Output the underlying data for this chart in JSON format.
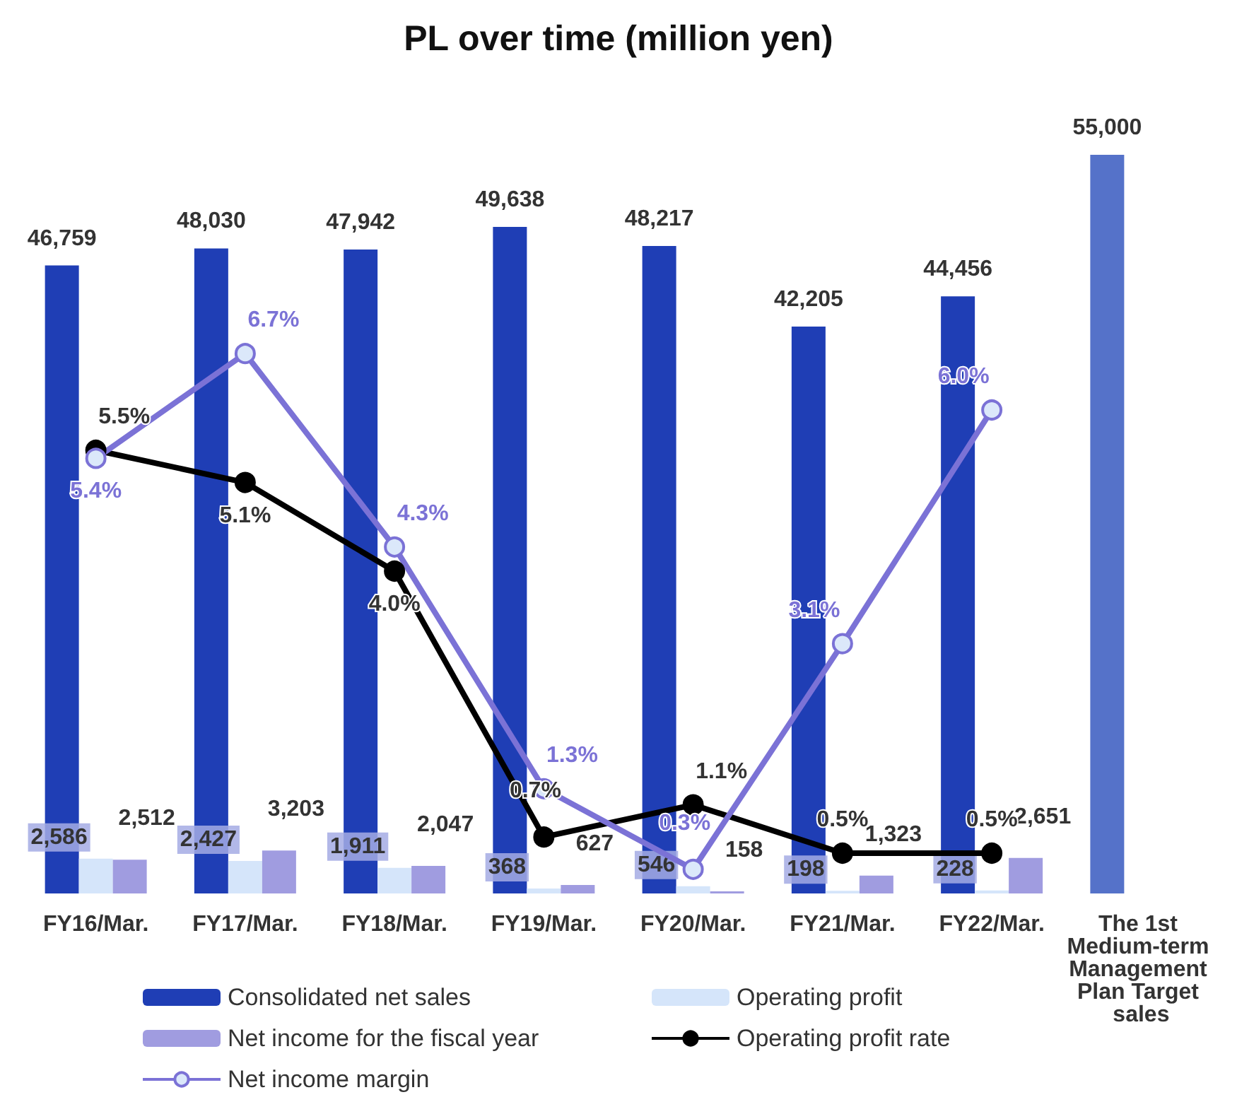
{
  "chart_data": {
    "type": "bar",
    "title": "PL over time (million yen)",
    "categories": [
      "FY16/Mar.",
      "FY17/Mar.",
      "FY18/Mar.",
      "FY19/Mar.",
      "FY20/Mar.",
      "FY21/Mar.",
      "FY22/Mar.",
      "The 1st Medium-term Management Plan Target sales"
    ],
    "tick_labels": "x",
    "grid": false,
    "legend": "bottom",
    "marker": "circle",
    "series": [
      {
        "name": "Consolidated net sales",
        "color": "#1f3eb5",
        "colors": [
          "#1f3eb5",
          "#1f3eb5",
          "#1f3eb5",
          "#1f3eb5",
          "#1f3eb5",
          "#1f3eb5",
          "#1f3eb5",
          "#5572c9"
        ],
        "values": [
          46759,
          48030,
          47942,
          49638,
          48217,
          42205,
          44456,
          55000
        ],
        "value_labels": [
          "46,759",
          "48,030",
          "47,942",
          "49,638",
          "48,217",
          "42,205",
          "44,456",
          "55,000"
        ]
      },
      {
        "name": "Operating profit",
        "color": "#d5e5fa",
        "values": [
          2586,
          2427,
          1911,
          368,
          546,
          198,
          228,
          null
        ],
        "value_labels": [
          "2,586",
          "2,427",
          "1,911",
          "368",
          "546",
          "198",
          "228",
          null
        ]
      },
      {
        "name": "Net income for the fiscal year",
        "color": "#a09ce0",
        "values": [
          2512,
          3203,
          2047,
          627,
          158,
          1323,
          2651,
          null
        ],
        "value_labels": [
          "2,512",
          "3,203",
          "2,047",
          "627",
          "158",
          "1,323",
          "2,651",
          null
        ]
      },
      {
        "name": "Operating profit rate",
        "type": "line",
        "axis": "y2",
        "color": "#000000",
        "values": [
          5.5,
          5.1,
          4.0,
          0.7,
          1.1,
          0.5,
          0.5,
          null
        ],
        "value_labels": [
          "5.5%",
          "5.1%",
          "4.0%",
          "0.7%",
          "1.1%",
          "0.5%",
          "0.5%",
          null
        ]
      },
      {
        "name": "Net income margin",
        "type": "line",
        "axis": "y2",
        "color": "#7b72d6",
        "values": [
          5.4,
          6.7,
          4.3,
          1.3,
          0.3,
          3.1,
          6.0,
          null
        ],
        "value_labels": [
          "5.4%",
          "6.7%",
          "4.3%",
          "1.3%",
          "0.3%",
          "3.1%",
          "6.0%",
          null
        ]
      }
    ]
  }
}
